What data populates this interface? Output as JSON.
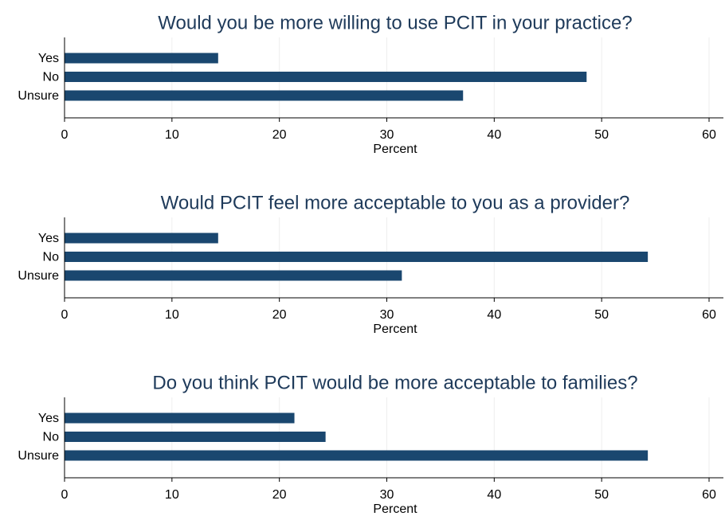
{
  "chart_data": [
    {
      "type": "bar",
      "orientation": "horizontal",
      "title": "Would you be more willing to use PCIT in your practice?",
      "categories": [
        "Yes",
        "No",
        "Unsure"
      ],
      "values": [
        14.3,
        48.6,
        37.1
      ],
      "color": "#1a476f",
      "xlim": [
        0,
        60
      ],
      "xticks": [
        0,
        10,
        20,
        30,
        40,
        50,
        60
      ],
      "xlabel": "Percent",
      "grid": true
    },
    {
      "type": "bar",
      "orientation": "horizontal",
      "title": "Would PCIT feel more acceptable to you as a provider?",
      "categories": [
        "Yes",
        "No",
        "Unsure"
      ],
      "values": [
        14.3,
        54.3,
        31.4
      ],
      "color": "#1a476f",
      "xlim": [
        0,
        60
      ],
      "xticks": [
        0,
        10,
        20,
        30,
        40,
        50,
        60
      ],
      "xlabel": "Percent",
      "grid": true
    },
    {
      "type": "bar",
      "orientation": "horizontal",
      "title": "Do you think PCIT would be more acceptable to families?",
      "categories": [
        "Yes",
        "No",
        "Unsure"
      ],
      "values": [
        21.4,
        24.3,
        54.3
      ],
      "color": "#1a476f",
      "xlim": [
        0,
        60
      ],
      "xticks": [
        0,
        10,
        20,
        30,
        40,
        50,
        60
      ],
      "xlabel": "Percent",
      "grid": true
    }
  ]
}
